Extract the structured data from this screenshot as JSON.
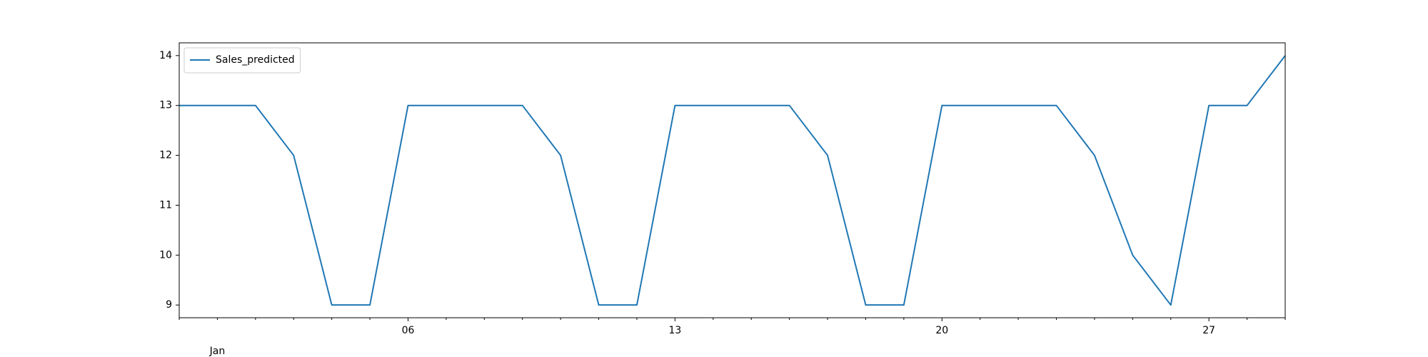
{
  "chart_data": {
    "type": "line",
    "categories": [
      null,
      null,
      null,
      null,
      null,
      null,
      "06",
      null,
      null,
      null,
      null,
      null,
      null,
      "13",
      null,
      null,
      null,
      null,
      null,
      null,
      "20",
      null,
      null,
      null,
      null,
      null,
      null,
      "27",
      null,
      null
    ],
    "month_labels": [
      {
        "at": 1,
        "label": "Jan"
      }
    ],
    "series": [
      {
        "name": "Sales_predicted",
        "color": "#1f77b4",
        "values": [
          13,
          13,
          13,
          12,
          9,
          9,
          13,
          13,
          13,
          13,
          12,
          9,
          9,
          13,
          13,
          13,
          13,
          12,
          9,
          9,
          13,
          13,
          13,
          13,
          12,
          10,
          9,
          13,
          13,
          14
        ]
      }
    ],
    "ylim": [
      8.745,
      14.255
    ],
    "yticks": [
      9,
      10,
      11,
      12,
      13,
      14
    ],
    "legend": "upper left",
    "grid": false
  }
}
